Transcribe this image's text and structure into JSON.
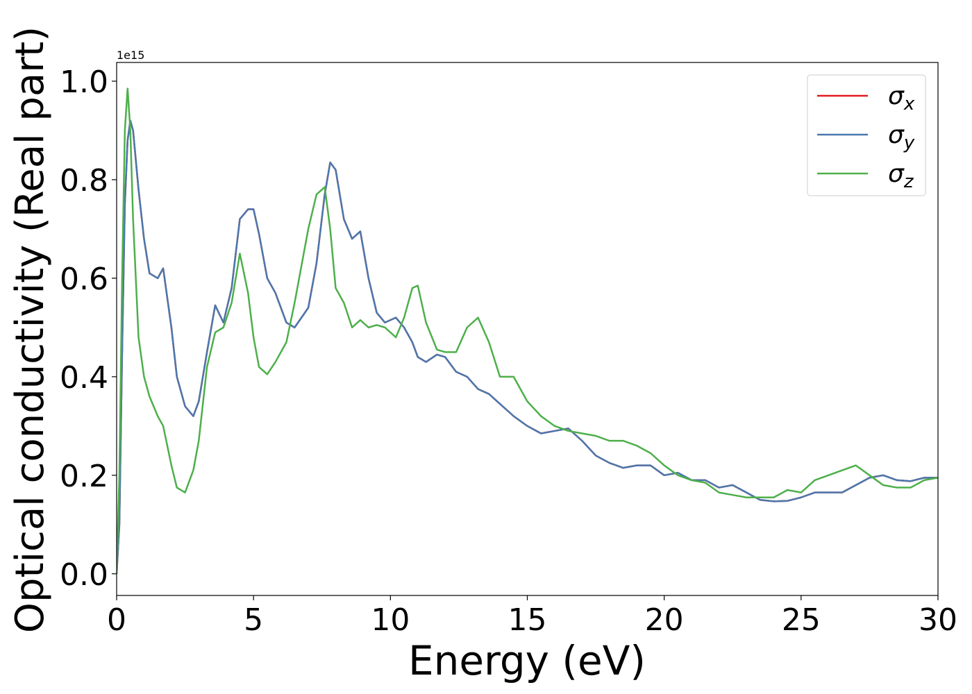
{
  "chart_data": {
    "type": "line",
    "x_label": "Energy (eV)",
    "y_label": "Optical conductivity (Real part)",
    "offset_text": "1e15",
    "xlim": [
      0,
      30
    ],
    "ylim": [
      -0.044,
      1.038
    ],
    "xticks": [
      0,
      5,
      10,
      15,
      20,
      25,
      30
    ],
    "yticks": [
      {
        "value": 0,
        "label": "0.0"
      },
      0.2,
      0.4,
      0.6,
      0.8,
      {
        "value": 1,
        "label": "1.0"
      }
    ],
    "grid": false,
    "legend": "upper right",
    "x": [
      0,
      0.1,
      0.2,
      0.3,
      0.4,
      0.5,
      0.6,
      0.8,
      1.0,
      1.2,
      1.5,
      1.7,
      2.0,
      2.2,
      2.5,
      2.8,
      3.0,
      3.3,
      3.6,
      3.9,
      4.2,
      4.5,
      4.8,
      5.0,
      5.2,
      5.5,
      5.8,
      6.2,
      6.5,
      7.0,
      7.3,
      7.6,
      7.8,
      8.0,
      8.3,
      8.6,
      8.9,
      9.2,
      9.5,
      9.8,
      10.2,
      10.5,
      10.8,
      11.0,
      11.3,
      11.7,
      12.0,
      12.4,
      12.8,
      13.2,
      13.6,
      14.0,
      14.5,
      15.0,
      15.5,
      16.0,
      16.5,
      17.0,
      17.5,
      18.0,
      18.5,
      19.0,
      19.5,
      20.0,
      20.5,
      21.0,
      21.5,
      22.0,
      22.5,
      23.0,
      23.5,
      24.0,
      24.5,
      25.0,
      25.5,
      26.0,
      26.5,
      27.0,
      27.5,
      28.0,
      28.5,
      29.0,
      29.5,
      30.0
    ],
    "series": [
      {
        "name": "σx",
        "color": "#e41a1c",
        "values": [
          0,
          0.1,
          0.45,
          0.75,
          0.88,
          0.92,
          0.9,
          0.78,
          0.68,
          0.61,
          0.6,
          0.62,
          0.5,
          0.4,
          0.34,
          0.32,
          0.35,
          0.45,
          0.545,
          0.51,
          0.58,
          0.72,
          0.74,
          0.74,
          0.69,
          0.6,
          0.57,
          0.51,
          0.5,
          0.54,
          0.63,
          0.77,
          0.835,
          0.82,
          0.72,
          0.68,
          0.695,
          0.6,
          0.53,
          0.51,
          0.52,
          0.5,
          0.47,
          0.44,
          0.43,
          0.445,
          0.44,
          0.41,
          0.4,
          0.375,
          0.365,
          0.345,
          0.32,
          0.3,
          0.285,
          0.29,
          0.295,
          0.27,
          0.24,
          0.225,
          0.215,
          0.22,
          0.22,
          0.2,
          0.205,
          0.19,
          0.19,
          0.175,
          0.18,
          0.165,
          0.15,
          0.147,
          0.148,
          0.155,
          0.165,
          0.165,
          0.165,
          0.18,
          0.195,
          0.2,
          0.19,
          0.188,
          0.195,
          0.195
        ]
      },
      {
        "name": "σy",
        "color": "#4a78ad",
        "values": [
          0,
          0.1,
          0.45,
          0.75,
          0.88,
          0.92,
          0.9,
          0.78,
          0.68,
          0.61,
          0.6,
          0.62,
          0.5,
          0.4,
          0.34,
          0.32,
          0.35,
          0.45,
          0.545,
          0.51,
          0.58,
          0.72,
          0.74,
          0.74,
          0.69,
          0.6,
          0.57,
          0.51,
          0.5,
          0.54,
          0.63,
          0.77,
          0.835,
          0.82,
          0.72,
          0.68,
          0.695,
          0.6,
          0.53,
          0.51,
          0.52,
          0.5,
          0.47,
          0.44,
          0.43,
          0.445,
          0.44,
          0.41,
          0.4,
          0.375,
          0.365,
          0.345,
          0.32,
          0.3,
          0.285,
          0.29,
          0.295,
          0.27,
          0.24,
          0.225,
          0.215,
          0.22,
          0.22,
          0.2,
          0.205,
          0.19,
          0.19,
          0.175,
          0.18,
          0.165,
          0.15,
          0.147,
          0.148,
          0.155,
          0.165,
          0.165,
          0.165,
          0.18,
          0.195,
          0.2,
          0.19,
          0.188,
          0.195,
          0.195
        ]
      },
      {
        "name": "σz",
        "color": "#4daf4a",
        "values": [
          0,
          0.2,
          0.6,
          0.9,
          0.985,
          0.9,
          0.72,
          0.48,
          0.4,
          0.36,
          0.32,
          0.3,
          0.22,
          0.175,
          0.165,
          0.21,
          0.27,
          0.42,
          0.49,
          0.5,
          0.55,
          0.65,
          0.57,
          0.48,
          0.42,
          0.405,
          0.43,
          0.47,
          0.55,
          0.7,
          0.77,
          0.785,
          0.7,
          0.58,
          0.55,
          0.5,
          0.515,
          0.5,
          0.505,
          0.5,
          0.48,
          0.52,
          0.58,
          0.585,
          0.51,
          0.455,
          0.45,
          0.45,
          0.5,
          0.52,
          0.47,
          0.4,
          0.4,
          0.35,
          0.32,
          0.3,
          0.29,
          0.285,
          0.28,
          0.27,
          0.27,
          0.26,
          0.245,
          0.22,
          0.2,
          0.19,
          0.185,
          0.165,
          0.16,
          0.155,
          0.155,
          0.155,
          0.17,
          0.165,
          0.19,
          0.2,
          0.21,
          0.22,
          0.2,
          0.18,
          0.175,
          0.175,
          0.19,
          0.195
        ]
      }
    ]
  }
}
